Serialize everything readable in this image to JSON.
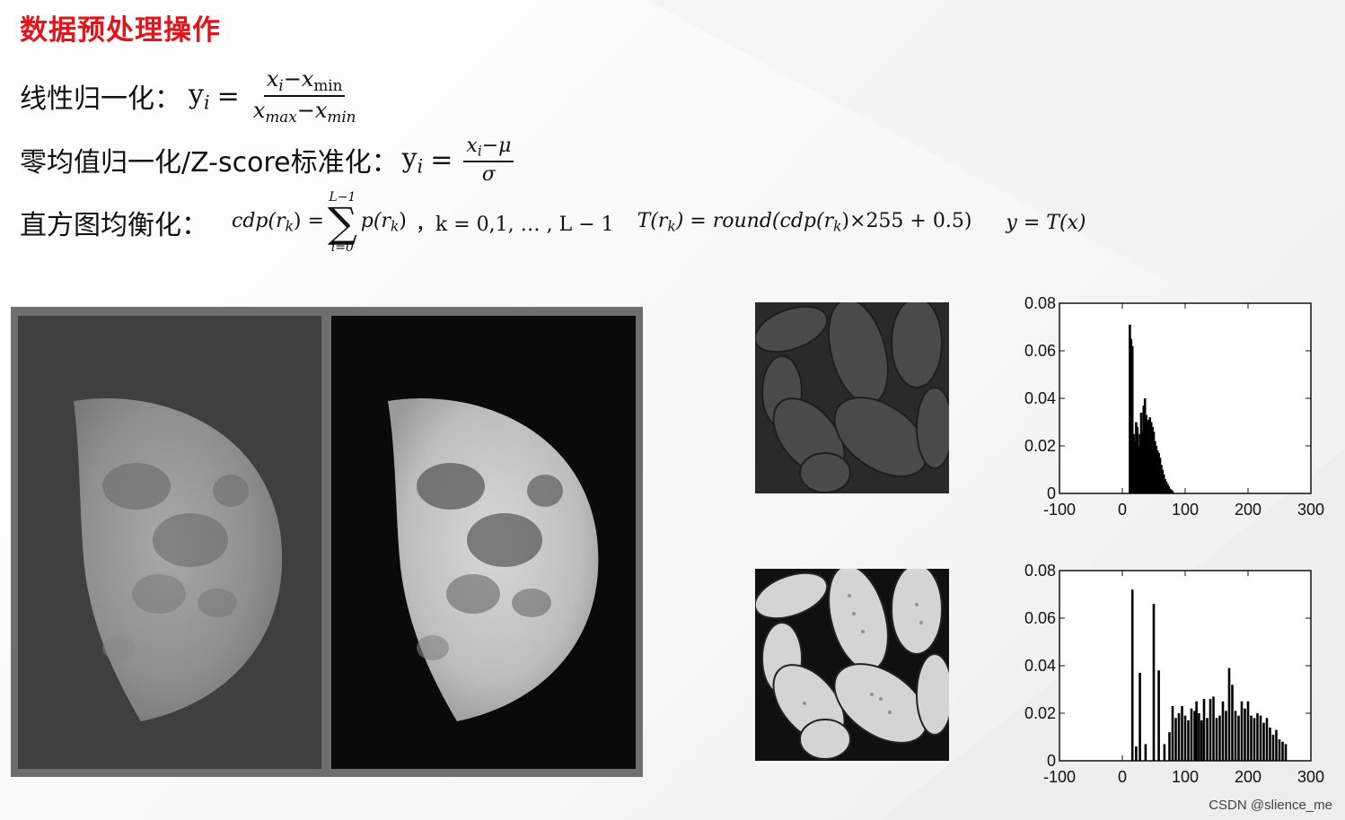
{
  "title": "数据预处理操作",
  "formulas": {
    "linear": {
      "label": "线性归一化：",
      "lhs": "y",
      "lhs_sub": "i",
      "eq": "=",
      "num_x": "x",
      "num_x_sub": "i",
      "num_minus": "−",
      "num_x2": "x",
      "num_x2_sub": "min",
      "den_x": "x",
      "den_x_sub": "max",
      "den_minus": "−",
      "den_x2": "x",
      "den_x2_sub": "min"
    },
    "zscore": {
      "label": "零均值归一化/Z-score标准化：",
      "lhs": "y",
      "lhs_sub": "i",
      "eq": "=",
      "num": "x",
      "num_sub": "i",
      "num_rest": "−μ",
      "den": "σ"
    },
    "histeq": {
      "label": "直方图均衡化：",
      "cdp_lhs": "cdp(r",
      "cdp_lhs_sub": "k",
      "cdp_lhs_end": ") =",
      "sum_top": "L−1",
      "sum_symbol": "∑",
      "sum_bottom": "i=0",
      "sum_term": "p(r",
      "sum_term_sub": "k",
      "sum_term_end": ")",
      "k_range": "，k = 0,1, … , L − 1",
      "t_formula": "T(r",
      "t_formula_sub": "k",
      "t_formula_mid": ") = round(cdp(r",
      "t_formula_sub2": "k",
      "t_formula_end": ")×255 + 0.5)",
      "y_formula": "y = T(x)"
    }
  },
  "charts": [
    {
      "type": "bar",
      "xlim": [
        -100,
        300
      ],
      "ylim": [
        0,
        0.08
      ],
      "x_ticks": [
        "-100",
        "0",
        "100",
        "200",
        "300"
      ],
      "y_ticks": [
        "0",
        "0.02",
        "0.04",
        "0.06",
        "0.08"
      ],
      "x": [
        12,
        14,
        16,
        18,
        20,
        22,
        24,
        26,
        28,
        30,
        32,
        34,
        36,
        38,
        40,
        42,
        44,
        46,
        48,
        50,
        52,
        54,
        56,
        58,
        60,
        62,
        64,
        66,
        68,
        70,
        72,
        74,
        76,
        78,
        80
      ],
      "values": [
        0.071,
        0.065,
        0.062,
        0.025,
        0.022,
        0.03,
        0.028,
        0.02,
        0.025,
        0.034,
        0.026,
        0.037,
        0.04,
        0.033,
        0.03,
        0.031,
        0.032,
        0.03,
        0.028,
        0.026,
        0.022,
        0.02,
        0.018,
        0.017,
        0.015,
        0.012,
        0.01,
        0.008,
        0.006,
        0.005,
        0.004,
        0.003,
        0.002,
        0.0015,
        0.001
      ]
    },
    {
      "type": "bar",
      "xlim": [
        -100,
        300
      ],
      "ylim": [
        0,
        0.08
      ],
      "x_ticks": [
        "-100",
        "0",
        "100",
        "200",
        "300"
      ],
      "y_ticks": [
        "0",
        "0.02",
        "0.04",
        "0.06",
        "0.08"
      ],
      "x": [
        16,
        22,
        28,
        37,
        50,
        58,
        67,
        75,
        80,
        85,
        90,
        95,
        100,
        105,
        110,
        115,
        118,
        122,
        126,
        130,
        135,
        140,
        145,
        150,
        155,
        160,
        165,
        170,
        175,
        180,
        185,
        190,
        195,
        200,
        205,
        210,
        215,
        220,
        225,
        230,
        235,
        240,
        245,
        250,
        255,
        260
      ],
      "values": [
        0.072,
        0.006,
        0.037,
        0.007,
        0.066,
        0.038,
        0.007,
        0.012,
        0.023,
        0.018,
        0.02,
        0.023,
        0.019,
        0.017,
        0.022,
        0.021,
        0.025,
        0.02,
        0.017,
        0.026,
        0.018,
        0.026,
        0.027,
        0.018,
        0.019,
        0.025,
        0.021,
        0.039,
        0.032,
        0.021,
        0.019,
        0.025,
        0.022,
        0.025,
        0.019,
        0.018,
        0.02,
        0.019,
        0.016,
        0.018,
        0.014,
        0.011,
        0.013,
        0.009,
        0.008,
        0.007
      ]
    }
  ],
  "watermark": "CSDN @slience_me"
}
